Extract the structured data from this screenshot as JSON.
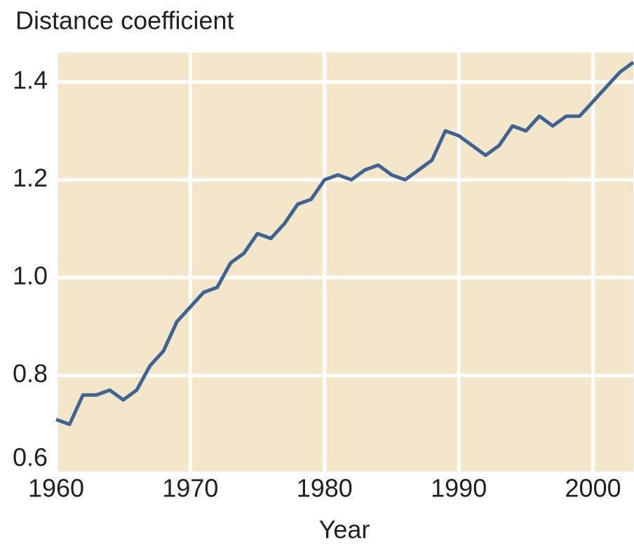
{
  "chart_data": {
    "type": "line",
    "y_label": "Distance coefficient",
    "x_label": "Year",
    "x": [
      1960,
      1961,
      1962,
      1963,
      1964,
      1965,
      1966,
      1967,
      1968,
      1969,
      1970,
      1971,
      1972,
      1973,
      1974,
      1975,
      1976,
      1977,
      1978,
      1979,
      1980,
      1981,
      1982,
      1983,
      1984,
      1985,
      1986,
      1987,
      1988,
      1989,
      1990,
      1991,
      1992,
      1993,
      1994,
      1995,
      1996,
      1997,
      1998,
      1999,
      2000,
      2001,
      2002,
      2003
    ],
    "series": [
      {
        "color": "#3d6494",
        "values": [
          0.71,
          0.7,
          0.76,
          0.76,
          0.77,
          0.75,
          0.77,
          0.82,
          0.85,
          0.91,
          0.94,
          0.97,
          0.98,
          1.03,
          1.05,
          1.09,
          1.08,
          1.11,
          1.15,
          1.16,
          1.2,
          1.21,
          1.2,
          1.22,
          1.23,
          1.21,
          1.2,
          1.22,
          1.24,
          1.3,
          1.29,
          1.27,
          1.25,
          1.27,
          1.31,
          1.3,
          1.33,
          1.31,
          1.33,
          1.33,
          1.36,
          1.39,
          1.42,
          1.44
        ]
      }
    ],
    "xlim": [
      1960,
      2003
    ],
    "ylim": [
      0.6,
      1.46
    ],
    "xticks": [
      1960,
      1970,
      1980,
      1990,
      2000
    ],
    "yticks": [
      0.6,
      0.8,
      {
        "value": 1.0,
        "label": "1.0"
      },
      1.2,
      1.4
    ],
    "grid": true,
    "background": "#f3e6c9"
  }
}
